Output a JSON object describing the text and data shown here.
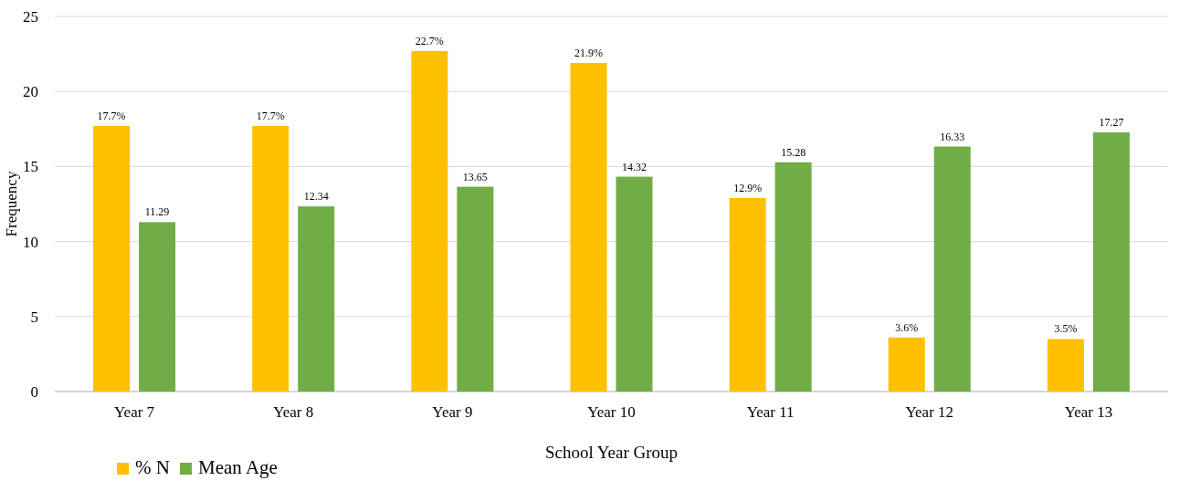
{
  "chart_data": {
    "type": "bar",
    "xlabel": "School Year Group",
    "ylabel": "Frequency",
    "categories": [
      "Year 7",
      "Year 8",
      "Year 9",
      "Year 10",
      "Year 11",
      "Year 12",
      "Year 13"
    ],
    "series": [
      {
        "name": "% N",
        "color": "#ffc000",
        "values": [
          17.7,
          17.7,
          22.7,
          21.9,
          12.9,
          3.6,
          3.5
        ],
        "value_labels": [
          "17.7%",
          "17.7%",
          "22.7%",
          "21.9%",
          "12.9%",
          "3.6%",
          "3.5%"
        ]
      },
      {
        "name": "Mean Age",
        "color": "#70ad47",
        "values": [
          11.29,
          12.34,
          13.65,
          14.32,
          15.28,
          16.33,
          17.27
        ],
        "value_labels": [
          "11.29",
          "12.34",
          "13.65",
          "14.32",
          "15.28",
          "16.33",
          "17.27"
        ]
      }
    ],
    "ylim": [
      0,
      25
    ],
    "yticks": [
      0,
      5,
      10,
      15,
      20,
      25
    ],
    "grid": "y",
    "legend": "bottom left"
  }
}
